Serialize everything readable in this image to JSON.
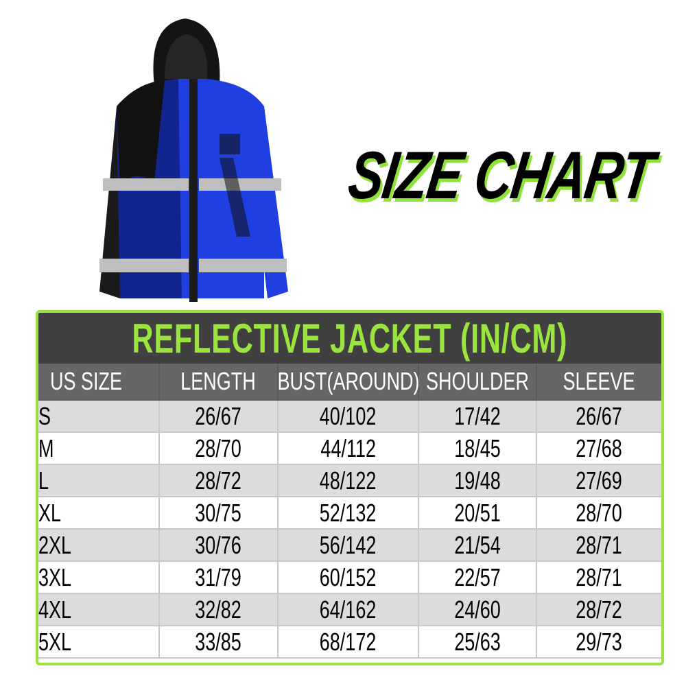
{
  "header": {
    "title": "SIZE CHART"
  },
  "colors": {
    "accent": "#9be33f",
    "title_band": "#404040",
    "header_band": "#666666",
    "row_alt": "#dcdcdc",
    "jacket_blue": "#1f3fe0"
  },
  "product_image": {
    "icon": "reflective-jacket-image"
  },
  "table": {
    "title": "REFLECTIVE JACKET (IN/CM)",
    "columns": [
      "US SIZE",
      "LENGTH",
      "BUST(AROUND)",
      "SHOULDER",
      "SLEEVE"
    ],
    "rows": [
      [
        "S",
        "26/67",
        "40/102",
        "17/42",
        "26/67"
      ],
      [
        "M",
        "28/70",
        "44/112",
        "18/45",
        "27/68"
      ],
      [
        "L",
        "28/72",
        "48/122",
        "19/48",
        "27/69"
      ],
      [
        "XL",
        "30/75",
        "52/132",
        "20/51",
        "28/70"
      ],
      [
        "2XL",
        "30/76",
        "56/142",
        "21/54",
        "28/71"
      ],
      [
        "3XL",
        "31/79",
        "60/152",
        "22/57",
        "28/71"
      ],
      [
        "4XL",
        "32/82",
        "64/162",
        "24/60",
        "28/72"
      ],
      [
        "5XL",
        "33/85",
        "68/172",
        "25/63",
        "29/73"
      ]
    ]
  }
}
